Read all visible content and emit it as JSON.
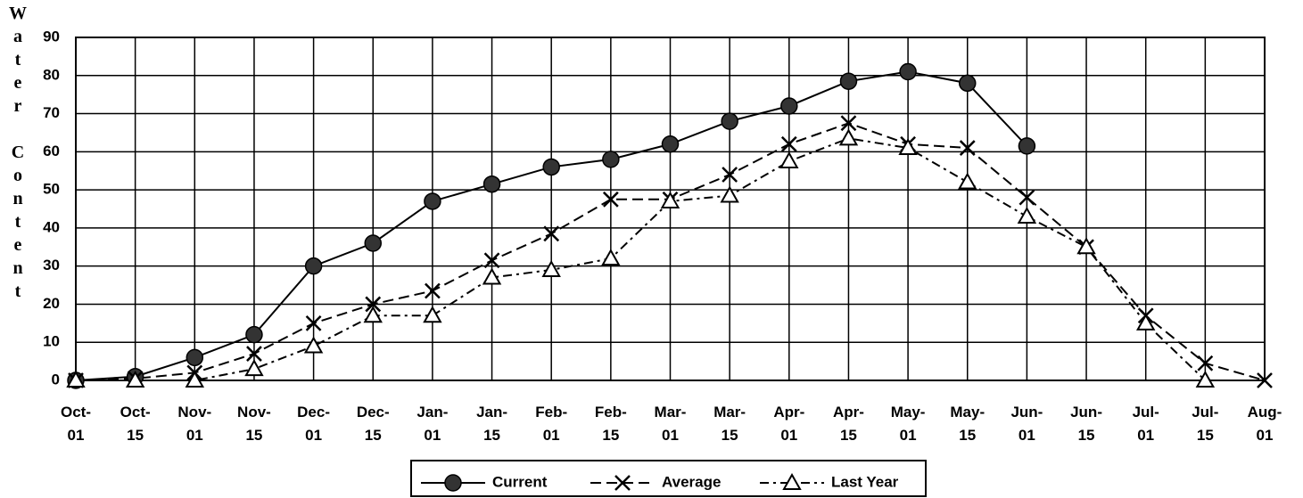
{
  "chart_data": {
    "type": "line",
    "y_label": "Water Content",
    "categories": [
      "Oct-01",
      "Oct-15",
      "Nov-01",
      "Nov-15",
      "Dec-01",
      "Dec-15",
      "Jan-01",
      "Jan-15",
      "Feb-01",
      "Feb-15",
      "Mar-01",
      "Mar-15",
      "Apr-01",
      "Apr-15",
      "May-01",
      "May-15",
      "Jun-01",
      "Jun-15",
      "Jul-01",
      "Jul-15",
      "Aug-01"
    ],
    "series": [
      {
        "name": "Current",
        "color": "#000000",
        "marker": "circle",
        "style": "solid",
        "values": [
          0,
          1,
          6,
          12,
          30,
          36,
          47,
          51.5,
          56,
          58,
          62,
          68,
          72,
          78.5,
          81,
          78,
          61.5,
          null,
          null,
          null,
          null
        ]
      },
      {
        "name": "Average",
        "color": "#000000",
        "marker": "x",
        "style": "dashed",
        "values": [
          0,
          0.5,
          2,
          7,
          15,
          20,
          23.5,
          31.5,
          38.5,
          47.5,
          47.5,
          54,
          62,
          67.5,
          62,
          61,
          48,
          35,
          17,
          4.5,
          0
        ]
      },
      {
        "name": "Last Year",
        "color": "#000000",
        "marker": "triangle",
        "style": "dashdot",
        "values": [
          0,
          0,
          0,
          3,
          9,
          17,
          17,
          27,
          29,
          32,
          47,
          48.5,
          57.5,
          63.5,
          61,
          52,
          43,
          35,
          15,
          0,
          null
        ]
      }
    ],
    "ylim": [
      0,
      90
    ],
    "yticks": [
      0,
      10,
      20,
      30,
      40,
      50,
      60,
      70,
      80,
      90
    ],
    "grid": true,
    "legend": "bottom"
  }
}
